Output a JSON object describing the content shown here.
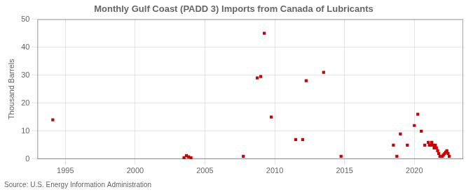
{
  "chart_data": {
    "type": "scatter",
    "title": "Monthly Gulf Coast (PADD 3) Imports from Canada of Lubricants",
    "ylabel": "Thousand Barrels",
    "source": "Source: U.S. Energy Information Administration",
    "x": [
      1994.1,
      2003.5,
      2003.67,
      2003.83,
      2004.0,
      2007.75,
      2008.75,
      2009.0,
      2009.25,
      2009.75,
      2011.5,
      2012.0,
      2012.25,
      2013.5,
      2014.75,
      2018.5,
      2018.75,
      2019.0,
      2019.5,
      2020.0,
      2020.25,
      2020.5,
      2020.75,
      2021.0,
      2021.08,
      2021.17,
      2021.25,
      2021.33,
      2021.42,
      2021.5,
      2021.58,
      2021.67,
      2021.75,
      2021.83,
      2022.0,
      2022.08,
      2022.17,
      2022.25,
      2022.33,
      2022.42,
      2022.5
    ],
    "values": [
      14,
      0.5,
      1.2,
      0.8,
      0.5,
      1.0,
      29,
      29.5,
      45,
      15,
      7,
      7,
      28,
      31,
      1,
      5,
      1,
      9,
      5,
      12,
      16,
      10,
      5,
      6,
      5,
      5,
      6,
      5,
      4,
      5,
      4,
      3,
      2,
      1,
      1,
      1.5,
      2,
      2.5,
      3,
      2,
      1
    ],
    "color": "#cc0000",
    "marker": "square",
    "xlim": [
      1993.0,
      2023.5
    ],
    "xticks": [
      1995,
      2000,
      2005,
      2010,
      2015,
      2020
    ],
    "ylim": [
      0,
      50
    ],
    "yticks": [
      0,
      10,
      20,
      30,
      40,
      50
    ],
    "grid": true
  }
}
